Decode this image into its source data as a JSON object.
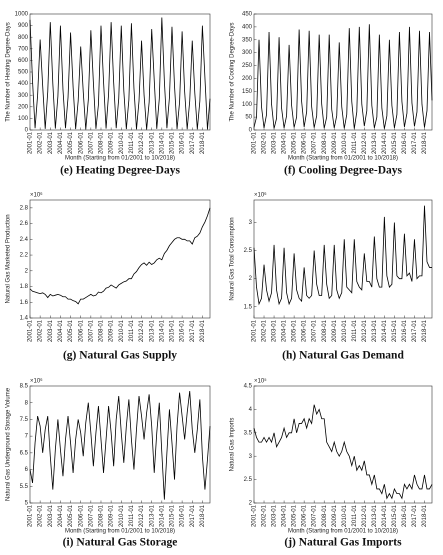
{
  "chart_data": [
    {
      "type": "line",
      "caption": "(e) Heating Degree-Days",
      "ylabel": "The Number of Heating Degree-Days",
      "xlabel": "Month (Starting from 01/2001 to 10/2018)",
      "color": "#000000",
      "ylim": [
        0,
        1000
      ],
      "yticks": [
        0,
        100,
        200,
        300,
        400,
        500,
        600,
        700,
        800,
        900,
        1000
      ],
      "values": [
        950,
        420,
        15,
        300,
        780,
        380,
        10,
        330,
        930,
        400,
        12,
        290,
        900,
        350,
        15,
        280,
        840,
        370,
        8,
        250,
        720,
        330,
        5,
        260,
        860,
        410,
        10,
        220,
        900,
        420,
        12,
        310,
        930,
        410,
        15,
        270,
        900,
        340,
        8,
        260,
        920,
        360,
        6,
        250,
        770,
        300,
        4,
        240,
        870,
        430,
        10,
        270,
        970,
        420,
        15,
        280,
        890,
        380,
        8,
        240,
        850,
        330,
        7,
        250,
        770,
        320,
        6,
        250,
        900,
        450,
        5,
        270
      ]
    },
    {
      "type": "line",
      "caption": "(f) Cooling Degree-Days",
      "ylabel": "The Number of Cooling Degree-Days",
      "xlabel": "Month (Starting from 01/2001 to 10/2018)",
      "color": "#000000",
      "ylim": [
        0,
        450
      ],
      "yticks": [
        0,
        50,
        100,
        150,
        200,
        250,
        300,
        350,
        400,
        450
      ],
      "values": [
        10,
        50,
        350,
        90,
        8,
        60,
        380,
        100,
        6,
        45,
        360,
        85,
        8,
        55,
        330,
        95,
        10,
        50,
        390,
        110,
        12,
        70,
        385,
        90,
        9,
        55,
        370,
        100,
        7,
        50,
        370,
        80,
        8,
        55,
        340,
        90,
        6,
        60,
        395,
        110,
        5,
        70,
        400,
        100,
        15,
        75,
        410,
        95,
        8,
        50,
        370,
        85,
        5,
        55,
        350,
        95,
        8,
        60,
        380,
        110,
        12,
        65,
        400,
        105,
        14,
        70,
        385,
        100,
        10,
        75,
        380,
        115
      ]
    },
    {
      "type": "line",
      "caption": "(g) Natural Gas Supply",
      "ylabel": "Natural Gas Marketed Production",
      "multiplier": "×10⁶",
      "color": "#000000",
      "ylim": [
        1.4,
        2.9
      ],
      "yticks": [
        1.4,
        1.6,
        1.8,
        2,
        2.2,
        2.4,
        2.6,
        2.8
      ],
      "values": [
        1.77,
        1.74,
        1.73,
        1.72,
        1.71,
        1.72,
        1.7,
        1.66,
        1.7,
        1.68,
        1.69,
        1.7,
        1.69,
        1.67,
        1.67,
        1.64,
        1.64,
        1.62,
        1.61,
        1.58,
        1.64,
        1.64,
        1.66,
        1.68,
        1.7,
        1.68,
        1.69,
        1.73,
        1.72,
        1.74,
        1.78,
        1.79,
        1.82,
        1.8,
        1.78,
        1.82,
        1.84,
        1.86,
        1.87,
        1.9,
        1.9,
        1.96,
        1.99,
        2.04,
        2.08,
        2.1,
        2.07,
        2.11,
        2.08,
        2.1,
        2.14,
        2.16,
        2.14,
        2.22,
        2.26,
        2.32,
        2.36,
        2.4,
        2.42,
        2.42,
        2.4,
        2.4,
        2.38,
        2.38,
        2.34,
        2.42,
        2.44,
        2.48,
        2.56,
        2.62,
        2.7,
        2.8
      ]
    },
    {
      "type": "line",
      "caption": "(h) Natural Gas Demand",
      "ylabel": "Natural Gas Total Consumption",
      "multiplier": "×10⁶",
      "color": "#000000",
      "ylim": [
        1.3,
        3.4
      ],
      "yticks": [
        1.5,
        2,
        2.5,
        3
      ],
      "values": [
        2.55,
        1.85,
        1.55,
        1.65,
        2.25,
        1.8,
        1.6,
        1.75,
        2.6,
        1.8,
        1.55,
        1.65,
        2.55,
        1.75,
        1.55,
        1.65,
        2.45,
        1.8,
        1.65,
        1.6,
        2.2,
        1.7,
        1.65,
        1.7,
        2.5,
        1.9,
        1.7,
        1.7,
        2.6,
        1.9,
        1.65,
        1.7,
        2.6,
        1.8,
        1.65,
        1.75,
        2.7,
        1.85,
        1.8,
        1.75,
        2.7,
        1.95,
        1.85,
        1.8,
        2.45,
        1.95,
        1.95,
        1.85,
        2.75,
        2,
        1.85,
        1.85,
        3.1,
        2.05,
        1.85,
        1.9,
        3,
        2.05,
        2,
        2,
        2.8,
        2.05,
        2.1,
        1.95,
        2.7,
        2,
        2.05,
        2.05,
        3.3,
        2.3,
        2.2,
        2.2
      ]
    },
    {
      "type": "line",
      "caption": "(i) Natural Gas Storage",
      "ylabel": "Natural Gas Underground Storage Volume",
      "xlabel": "Month (Starting from 01/2001 to 10/2018)",
      "multiplier": "×10⁶",
      "color": "#000000",
      "ylim": [
        5,
        8.5
      ],
      "yticks": [
        5,
        5.5,
        6,
        6.5,
        7,
        7.5,
        8,
        8.5
      ],
      "values": [
        6,
        5.6,
        6.8,
        7.6,
        7.3,
        6.5,
        7.2,
        7.6,
        6.4,
        5.4,
        6.6,
        7.5,
        6.6,
        5.8,
        6.9,
        7.6,
        6.8,
        5.9,
        6.9,
        7.5,
        7.1,
        6.4,
        7.4,
        8,
        7.1,
        6.1,
        7.1,
        7.9,
        6.9,
        5.9,
        6.9,
        7.9,
        7.1,
        6.1,
        7.5,
        8.2,
        7.1,
        6.2,
        7.3,
        8.1,
        6.9,
        6,
        7.2,
        8.2,
        7.6,
        6.9,
        7.7,
        8.25,
        7.3,
        5.9,
        7.1,
        8,
        6.5,
        5.1,
        6.5,
        7.8,
        6.8,
        5.7,
        7.3,
        8.3,
        7.6,
        6.9,
        7.7,
        8.35,
        7.2,
        6.5,
        7.2,
        8.1,
        6.4,
        5.4,
        6.3,
        7.3
      ]
    },
    {
      "type": "line",
      "caption": "(j) Natural Gas Imports",
      "ylabel": "Natural Gas Imports",
      "xlabel": "Month (Starting from 01/2001 to 10/2018)",
      "multiplier": "×10⁵",
      "color": "#000000",
      "ylim": [
        2,
        4.5
      ],
      "yticks": [
        2,
        2.5,
        3,
        3.5,
        4,
        4.5
      ],
      "values": [
        3.6,
        3.4,
        3.3,
        3.3,
        3.4,
        3.3,
        3.4,
        3.3,
        3.5,
        3.2,
        3.3,
        3.4,
        3.6,
        3.4,
        3.5,
        3.5,
        3.8,
        3.5,
        3.7,
        3.7,
        3.8,
        3.6,
        3.8,
        3.7,
        4.1,
        3.9,
        4,
        3.8,
        3.8,
        3.3,
        3.2,
        3.1,
        3.3,
        3.1,
        3,
        3.1,
        3.3,
        3.1,
        3,
        2.8,
        3,
        2.7,
        2.8,
        2.7,
        2.9,
        2.6,
        2.6,
        2.4,
        2.6,
        2.3,
        2.3,
        2.2,
        2.4,
        2.1,
        2.2,
        2.1,
        2.3,
        2.2,
        2.2,
        2.1,
        2.4,
        2.3,
        2.4,
        2.3,
        2.6,
        2.4,
        2.3,
        2.3,
        2.6,
        2.3,
        2.3,
        2.4
      ]
    }
  ],
  "x": [
    "2001-01",
    "2001-04",
    "2001-07",
    "2001-10",
    "2002-01",
    "2002-04",
    "2002-07",
    "2002-10",
    "2003-01",
    "2003-04",
    "2003-07",
    "2003-10",
    "2004-01",
    "2004-04",
    "2004-07",
    "2004-10",
    "2005-01",
    "2005-04",
    "2005-07",
    "2005-10",
    "2006-01",
    "2006-04",
    "2006-07",
    "2006-10",
    "2007-01",
    "2007-04",
    "2007-07",
    "2007-10",
    "2008-01",
    "2008-04",
    "2008-07",
    "2008-10",
    "2009-01",
    "2009-04",
    "2009-07",
    "2009-10",
    "2010-01",
    "2010-04",
    "2010-07",
    "2010-10",
    "2011-01",
    "2011-04",
    "2011-07",
    "2011-10",
    "2012-01",
    "2012-04",
    "2012-07",
    "2012-10",
    "2013-01",
    "2013-04",
    "2013-07",
    "2013-10",
    "2014-01",
    "2014-04",
    "2014-07",
    "2014-10",
    "2015-01",
    "2015-04",
    "2015-07",
    "2015-10",
    "2016-01",
    "2016-04",
    "2016-07",
    "2016-10",
    "2017-01",
    "2017-04",
    "2017-07",
    "2017-10",
    "2018-01",
    "2018-04",
    "2018-07",
    "2018-10"
  ],
  "xlim": [
    "2001-01",
    "2018-10"
  ],
  "xticks": [
    "2001-01",
    "2002-01",
    "2003-01",
    "2004-01",
    "2005-01",
    "2006-01",
    "2007-01",
    "2008-01",
    "2009-01",
    "2010-01",
    "2011-01",
    "2012-01",
    "2013-01",
    "2014-01",
    "2015-01",
    "2016-01",
    "2017-01",
    "2018-01"
  ]
}
